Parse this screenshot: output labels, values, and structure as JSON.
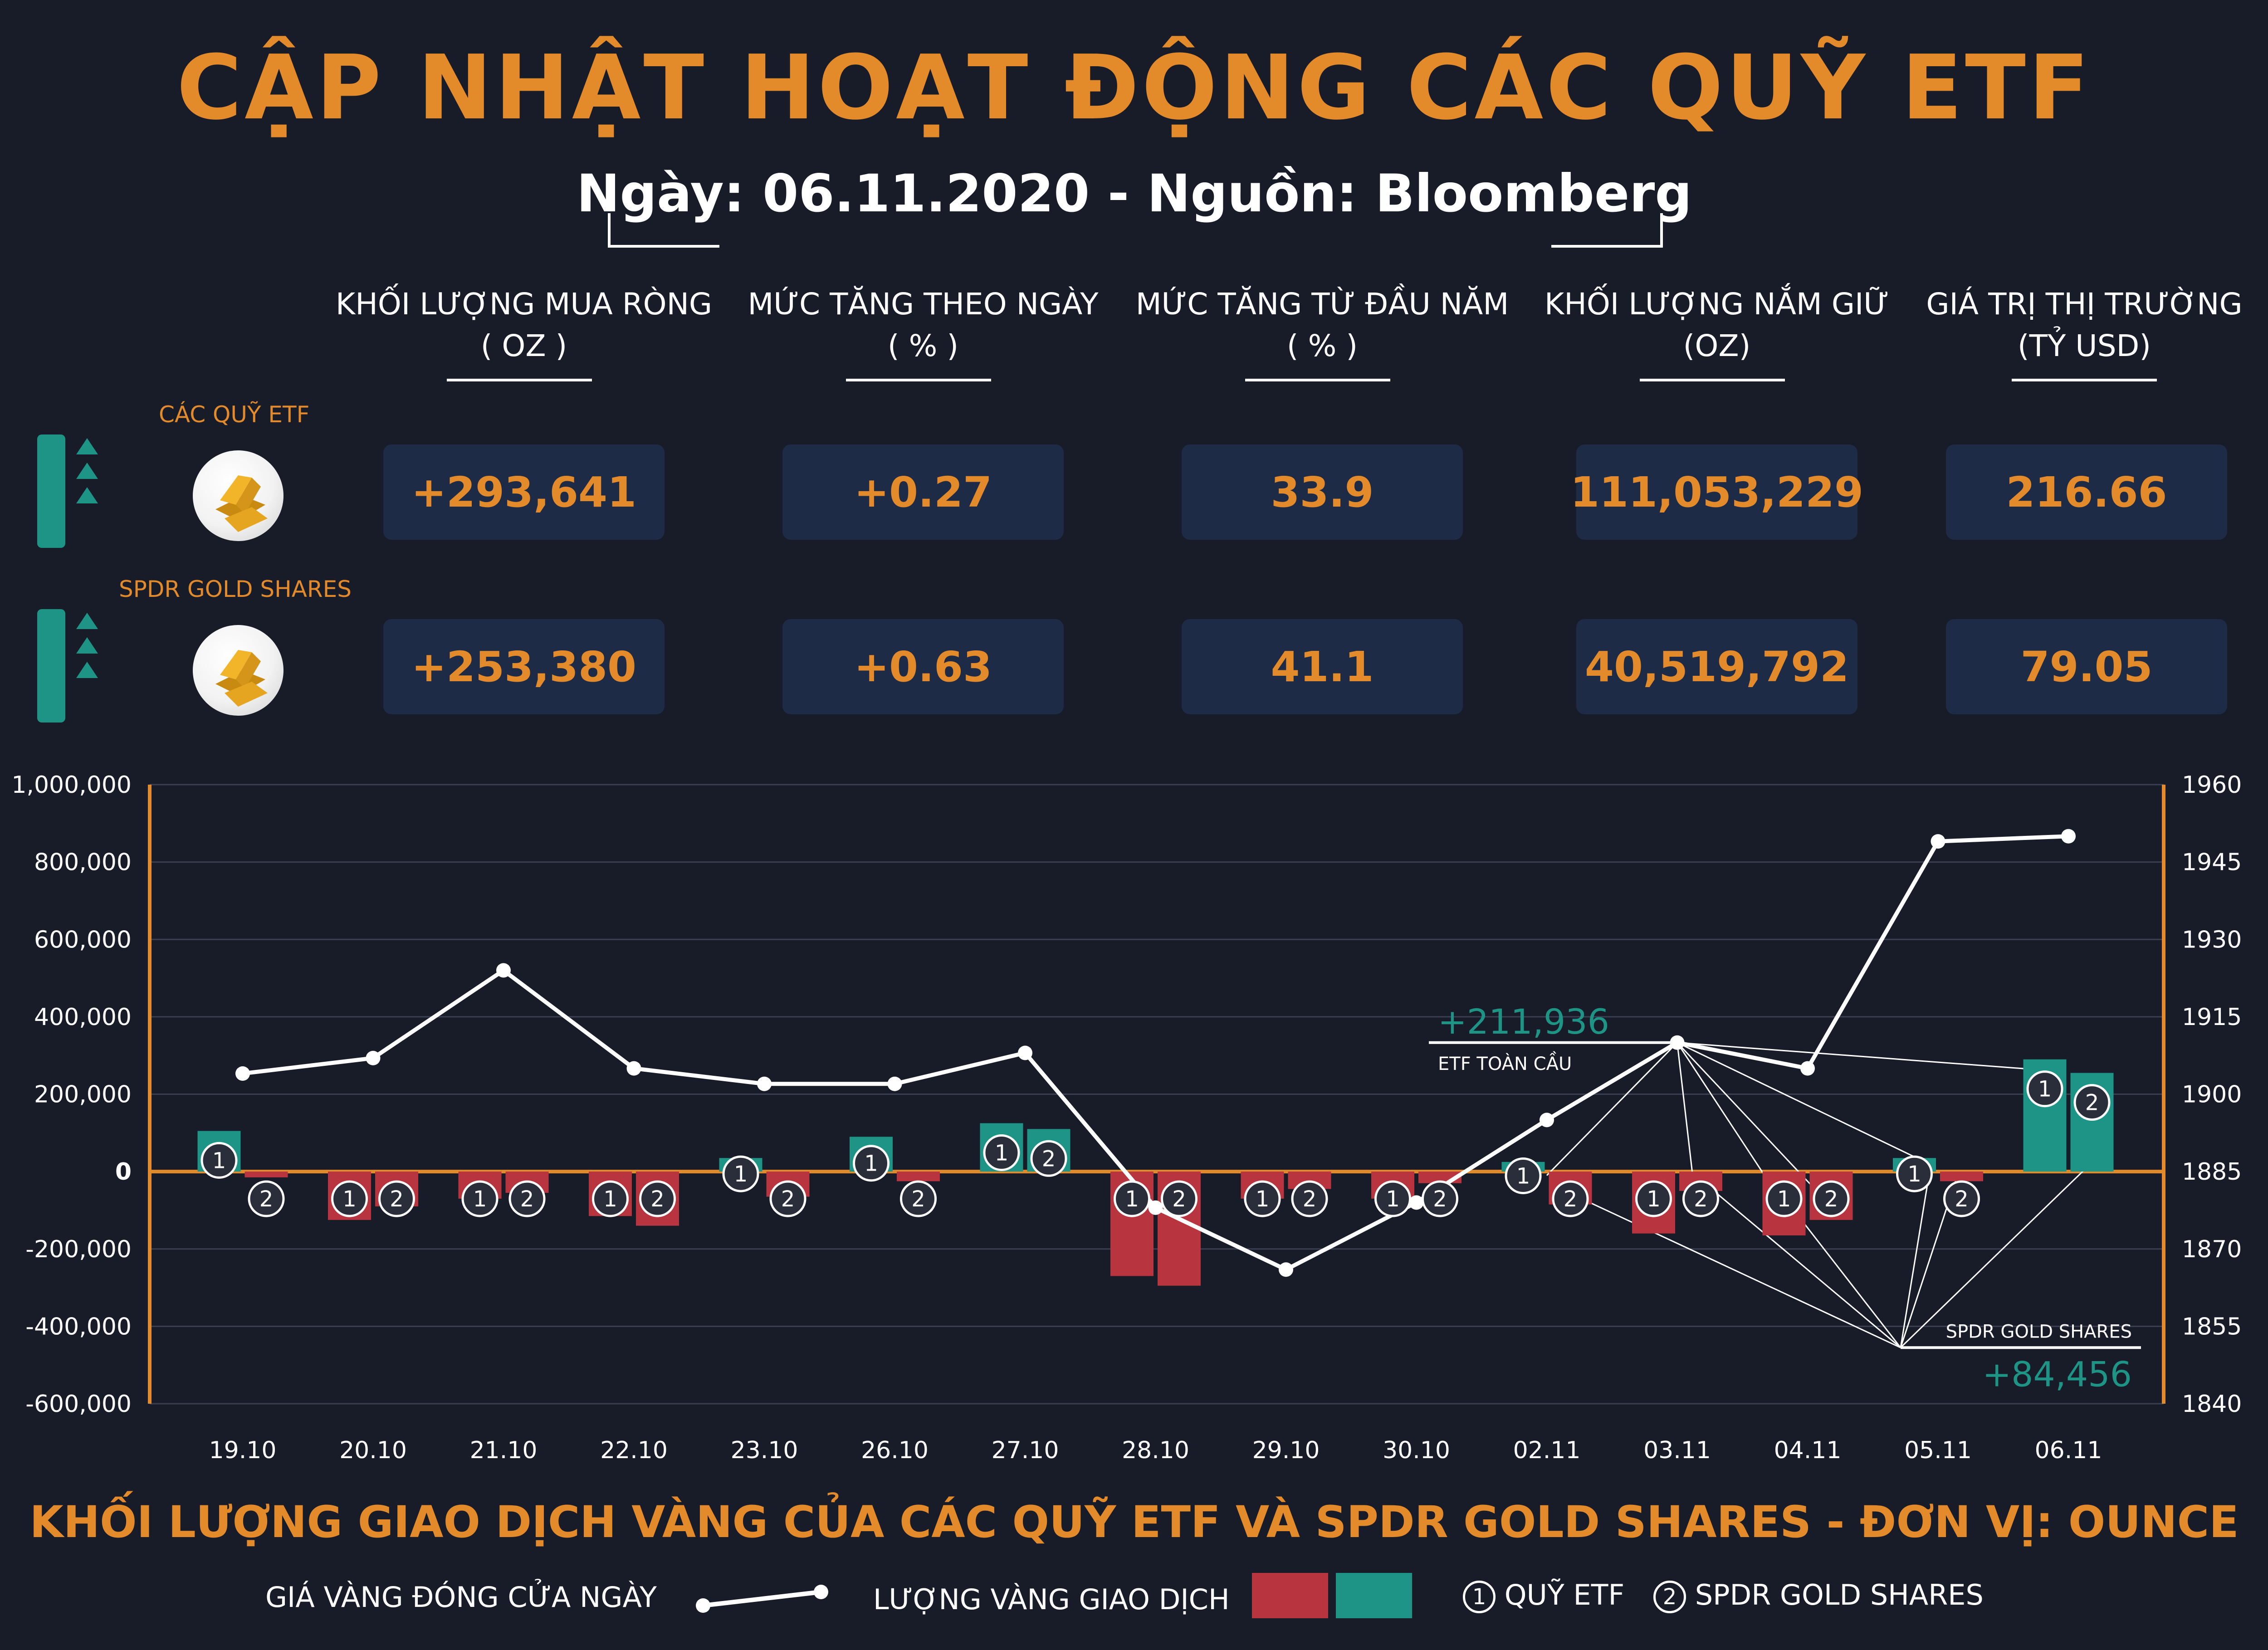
{
  "header": {
    "title": "CẬP NHẬT HOẠT ĐỘNG CÁC QUỸ ETF",
    "subtitle": "Ngày: 06.11.2020 - Nguồn: Bloomberg"
  },
  "table": {
    "columns": [
      {
        "label": "KHỐI LƯỢNG MUA RÒNG",
        "unit": "( OZ )"
      },
      {
        "label": "MỨC TĂNG THEO NGÀY",
        "unit": "( % )"
      },
      {
        "label": "MỨC TĂNG TỪ ĐẦU NĂM",
        "unit": "( % )"
      },
      {
        "label": "KHỐI LƯỢNG NẮM GIỮ",
        "unit": "(OZ)"
      },
      {
        "label": "GIÁ TRỊ THỊ TRƯỜNG",
        "unit": "(TỶ USD)"
      }
    ],
    "rows": [
      {
        "label": "CÁC QUỸ ETF",
        "values": [
          "+293,641",
          "+0.27",
          "33.9",
          "111,053,229",
          "216.66"
        ]
      },
      {
        "label": "SPDR GOLD SHARES",
        "values": [
          "+253,380",
          "+0.63",
          "41.1",
          "40,519,792",
          "79.05"
        ]
      }
    ]
  },
  "colors": {
    "accent": "#e38a2b",
    "positive": "#1d9486",
    "negative": "#b8353f",
    "line": "#ffffff",
    "background": "#181b28"
  },
  "icons": {
    "trend": "up-triangles-icon",
    "gold": "gold-bar-icon"
  },
  "chart_data": {
    "type": "bar",
    "categories": [
      "19.10",
      "20.10",
      "21.10",
      "22.10",
      "23.10",
      "26.10",
      "27.10",
      "28.10",
      "29.10",
      "30.10",
      "02.11",
      "03.11",
      "04.11",
      "05.11",
      "06.11"
    ],
    "series": [
      {
        "marker": "1",
        "type": "bar",
        "axis": "left",
        "values": [
          105000,
          -125000,
          -70000,
          -115000,
          35000,
          90000,
          125000,
          -270000,
          -70000,
          -70000,
          25000,
          -160000,
          -165000,
          35000,
          290000
        ]
      },
      {
        "marker": "2",
        "type": "bar",
        "axis": "left",
        "values": [
          -15000,
          -90000,
          -55000,
          -140000,
          -65000,
          -25000,
          110000,
          -295000,
          -45000,
          -30000,
          -85000,
          -50000,
          -125000,
          -25000,
          255000
        ]
      },
      {
        "type": "line",
        "axis": "right",
        "values": [
          1904,
          1907,
          1924,
          1905,
          1902,
          1902,
          1908,
          1878,
          1866,
          1879,
          1895,
          1910,
          1905,
          1949,
          1950
        ]
      }
    ],
    "ylim_left": [
      -600000,
      1000000
    ],
    "yticks_left": [
      "1,000,000",
      "800,000",
      "600,000",
      "400,000",
      "200,000",
      "0",
      "-200,000",
      "-400,000",
      "-600,000"
    ],
    "ylim_right": [
      1840,
      1960
    ],
    "yticks_right": [
      "1960",
      "1945",
      "1930",
      "1915",
      "1900",
      "1885",
      "1870",
      "1855",
      "1840"
    ],
    "annotations": [
      {
        "value": "+211,936",
        "label": "ETF TOÀN CẦU"
      },
      {
        "value": "+84,456",
        "label": "SPDR GOLD SHARES"
      }
    ],
    "title": "KHỐI LƯỢNG GIAO DỊCH VÀNG CỦA CÁC QUỸ ETF VÀ SPDR GOLD SHARES - ĐƠN VỊ: OUNCE",
    "legend": {
      "line_label": "GIÁ VÀNG ĐÓNG CỬA NGÀY",
      "bar_label": "LƯỢNG VÀNG GIAO DỊCH",
      "series1_label": "QUỸ ETF",
      "series2_label": "SPDR GOLD SHARES"
    },
    "grid": true
  }
}
